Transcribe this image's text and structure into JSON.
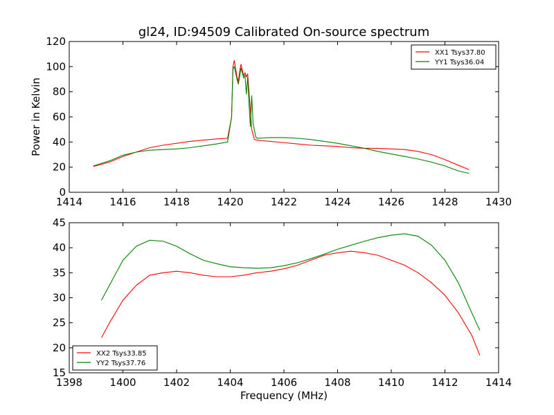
{
  "chart_data": [
    {
      "type": "line",
      "title": "gl24, ID:94509 Calibrated On-source spectrum",
      "xlabel": "",
      "ylabel": "Power in Kelvin",
      "xlim": [
        1414,
        1430
      ],
      "ylim": [
        0,
        120
      ],
      "xticks": [
        "1414",
        "1416",
        "1418",
        "1420",
        "1422",
        "1424",
        "1426",
        "1428",
        "1430"
      ],
      "yticks": [
        "0",
        "20",
        "40",
        "60",
        "80",
        "100",
        "120"
      ],
      "legend_position": "top-right",
      "series": [
        {
          "name": "XX1 Tsys37.80",
          "color": "#ff0000",
          "points": [
            [
              1414.9,
              20.5
            ],
            [
              1415.5,
              24
            ],
            [
              1416,
              28.5
            ],
            [
              1416.5,
              32
            ],
            [
              1417,
              35.5
            ],
            [
              1417.5,
              37.5
            ],
            [
              1418,
              39
            ],
            [
              1418.5,
              40.5
            ],
            [
              1419,
              41.5
            ],
            [
              1419.5,
              42.5
            ],
            [
              1419.9,
              43
            ],
            [
              1420.05,
              60
            ],
            [
              1420.1,
              100
            ],
            [
              1420.15,
              105
            ],
            [
              1420.25,
              92
            ],
            [
              1420.3,
              88
            ],
            [
              1420.35,
              96
            ],
            [
              1420.4,
              102
            ],
            [
              1420.45,
              97
            ],
            [
              1420.5,
              93
            ],
            [
              1420.55,
              95
            ],
            [
              1420.6,
              92
            ],
            [
              1420.65,
              94
            ],
            [
              1420.7,
              80
            ],
            [
              1420.8,
              50
            ],
            [
              1420.9,
              42
            ],
            [
              1421,
              41.5
            ],
            [
              1421.5,
              40.5
            ],
            [
              1422,
              39.5
            ],
            [
              1422.5,
              38.5
            ],
            [
              1423,
              37.5
            ],
            [
              1423.5,
              37
            ],
            [
              1424,
              36.5
            ],
            [
              1424.5,
              35.5
            ],
            [
              1425,
              35
            ],
            [
              1425.5,
              35
            ],
            [
              1426,
              34.5
            ],
            [
              1426.5,
              34
            ],
            [
              1427,
              32.5
            ],
            [
              1427.5,
              30
            ],
            [
              1428,
              26
            ],
            [
              1428.5,
              21.5
            ],
            [
              1428.9,
              18
            ]
          ]
        },
        {
          "name": "YY1 Tsys36.04",
          "color": "#008000",
          "points": [
            [
              1414.9,
              21
            ],
            [
              1415.5,
              25
            ],
            [
              1416,
              29.5
            ],
            [
              1416.5,
              32
            ],
            [
              1417,
              33.5
            ],
            [
              1417.5,
              34
            ],
            [
              1418,
              34.5
            ],
            [
              1418.5,
              35.5
            ],
            [
              1419,
              37
            ],
            [
              1419.5,
              38.5
            ],
            [
              1419.9,
              40
            ],
            [
              1420.05,
              60
            ],
            [
              1420.1,
              98
            ],
            [
              1420.15,
              100
            ],
            [
              1420.25,
              90
            ],
            [
              1420.3,
              86
            ],
            [
              1420.35,
              92
            ],
            [
              1420.4,
              99
            ],
            [
              1420.45,
              95
            ],
            [
              1420.5,
              91
            ],
            [
              1420.55,
              93
            ],
            [
              1420.6,
              78
            ],
            [
              1420.65,
              92
            ],
            [
              1420.7,
              70
            ],
            [
              1420.75,
              52
            ],
            [
              1420.8,
              77
            ],
            [
              1420.85,
              55
            ],
            [
              1420.95,
              44
            ],
            [
              1421,
              43
            ],
            [
              1421.5,
              43.5
            ],
            [
              1422,
              43.5
            ],
            [
              1422.5,
              43
            ],
            [
              1423,
              42
            ],
            [
              1423.5,
              40.5
            ],
            [
              1424,
              39
            ],
            [
              1424.5,
              37
            ],
            [
              1425,
              35
            ],
            [
              1425.5,
              32.5
            ],
            [
              1426,
              30.5
            ],
            [
              1426.5,
              28.5
            ],
            [
              1427,
              26.5
            ],
            [
              1427.5,
              24
            ],
            [
              1428,
              21
            ],
            [
              1428.5,
              17
            ],
            [
              1428.9,
              15
            ]
          ]
        }
      ]
    },
    {
      "type": "line",
      "title": "",
      "xlabel": "Frequency (MHz)",
      "ylabel": "",
      "xlim": [
        1398,
        1414
      ],
      "ylim": [
        15,
        45
      ],
      "xticks": [
        "1398",
        "1400",
        "1402",
        "1404",
        "1406",
        "1408",
        "1410",
        "1412",
        "1414"
      ],
      "yticks": [
        "15",
        "20",
        "25",
        "30",
        "35",
        "40",
        "45"
      ],
      "legend_position": "bottom-left",
      "series": [
        {
          "name": "XX2 Tsys33.85",
          "color": "#ff0000",
          "points": [
            [
              1399.2,
              22
            ],
            [
              1399.5,
              25
            ],
            [
              1400,
              29.5
            ],
            [
              1400.5,
              32.5
            ],
            [
              1401,
              34.5
            ],
            [
              1401.5,
              35
            ],
            [
              1402,
              35.3
            ],
            [
              1402.5,
              35
            ],
            [
              1403,
              34.5
            ],
            [
              1403.5,
              34.2
            ],
            [
              1404,
              34.2
            ],
            [
              1404.5,
              34.5
            ],
            [
              1405,
              35
            ],
            [
              1405.5,
              35.3
            ],
            [
              1406,
              35.8
            ],
            [
              1406.5,
              36.5
            ],
            [
              1407,
              37.5
            ],
            [
              1407.5,
              38.5
            ],
            [
              1408,
              39
            ],
            [
              1408.5,
              39.3
            ],
            [
              1409,
              39
            ],
            [
              1409.5,
              38.5
            ],
            [
              1410,
              37.5
            ],
            [
              1410.5,
              36.5
            ],
            [
              1411,
              35
            ],
            [
              1411.5,
              33
            ],
            [
              1412,
              30.5
            ],
            [
              1412.5,
              27
            ],
            [
              1413,
              22.5
            ],
            [
              1413.3,
              18.5
            ]
          ]
        },
        {
          "name": "YY2 Tsys37.76",
          "color": "#008000",
          "points": [
            [
              1399.2,
              29.5
            ],
            [
              1399.5,
              32.5
            ],
            [
              1400,
              37.5
            ],
            [
              1400.5,
              40.3
            ],
            [
              1401,
              41.5
            ],
            [
              1401.5,
              41.3
            ],
            [
              1402,
              40.3
            ],
            [
              1402.5,
              38.8
            ],
            [
              1403,
              37.5
            ],
            [
              1403.5,
              36.8
            ],
            [
              1404,
              36.2
            ],
            [
              1404.5,
              36
            ],
            [
              1405,
              35.9
            ],
            [
              1405.5,
              36
            ],
            [
              1406,
              36.4
            ],
            [
              1406.5,
              37
            ],
            [
              1407,
              37.8
            ],
            [
              1407.5,
              38.7
            ],
            [
              1408,
              39.7
            ],
            [
              1408.5,
              40.5
            ],
            [
              1409,
              41.3
            ],
            [
              1409.5,
              42
            ],
            [
              1410,
              42.5
            ],
            [
              1410.5,
              42.8
            ],
            [
              1411,
              42.3
            ],
            [
              1411.5,
              40.5
            ],
            [
              1412,
              37.5
            ],
            [
              1412.5,
              33
            ],
            [
              1413,
              27
            ],
            [
              1413.3,
              23.5
            ]
          ]
        }
      ]
    }
  ]
}
